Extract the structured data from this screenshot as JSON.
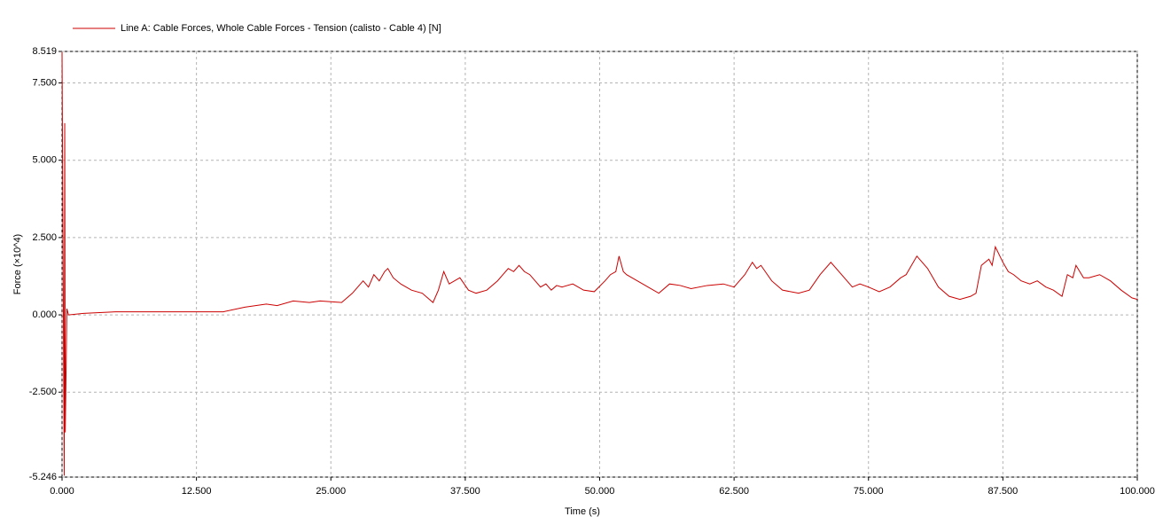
{
  "chart_data": {
    "type": "line",
    "x_label": "Time (s)",
    "y_label": "Force (×10^4)",
    "xlim": [
      0,
      100
    ],
    "ylim": [
      -5.246,
      8.519
    ],
    "xticks": [
      {
        "value": 0,
        "label": "0.000"
      },
      {
        "value": 12.5,
        "label": "12.500"
      },
      {
        "value": 25,
        "label": "25.000"
      },
      {
        "value": 37.5,
        "label": "37.500"
      },
      {
        "value": 50,
        "label": "50.000"
      },
      {
        "value": 62.5,
        "label": "62.500"
      },
      {
        "value": 75,
        "label": "75.000"
      },
      {
        "value": 87.5,
        "label": "87.500"
      },
      {
        "value": 100,
        "label": "100.000"
      }
    ],
    "yticks": [
      {
        "value": -5.246,
        "label": "-5.246"
      },
      {
        "value": -2.5,
        "label": "-2.500"
      },
      {
        "value": 0,
        "label": "0.000"
      },
      {
        "value": 2.5,
        "label": "2.500"
      },
      {
        "value": 5,
        "label": "5.000"
      },
      {
        "value": 7.5,
        "label": "7.500"
      },
      {
        "value": 8.519,
        "label": "8.519"
      }
    ],
    "grid": true,
    "legend": "top-left",
    "x": [
      0,
      0.2,
      0.25,
      0.3,
      0.45,
      0.6,
      2,
      5,
      10,
      15,
      17,
      19,
      20,
      21.5,
      23,
      24,
      26,
      27,
      27.5,
      28,
      28.5,
      29,
      29.5,
      30,
      30.3,
      30.8,
      31.5,
      32,
      32.5,
      33.5,
      34.5,
      35,
      35.5,
      36,
      37,
      37.8,
      38.5,
      39.5,
      40.5,
      41,
      41.5,
      42,
      42.5,
      43,
      43.5,
      44.5,
      45,
      45.5,
      46,
      46.5,
      47.5,
      48.5,
      49.5,
      50.5,
      51,
      51.5,
      51.8,
      52.2,
      52.5,
      53.5,
      54.5,
      55.5,
      56.5,
      57.5,
      58.5,
      60,
      61.5,
      62.5,
      63,
      63.5,
      64.2,
      64.6,
      65,
      66,
      67,
      68.5,
      69.5,
      70.5,
      71.5,
      72.5,
      73.5,
      74.2,
      75,
      76,
      77,
      78,
      78.5,
      79,
      79.5,
      80.5,
      81.5,
      82.5,
      83.5,
      84.5,
      85,
      85.5,
      86.2,
      86.5,
      86.8,
      87.5,
      88,
      88.5,
      89.2,
      90,
      90.7,
      91.5,
      92.2,
      93,
      93.5,
      94,
      94.3,
      95,
      95.5,
      96.5,
      97.5,
      98.5,
      99.5,
      100
    ],
    "series": [
      {
        "name": "Line A: Cable Forces, Whole Cable Forces - Tension (calisto - Cable 4) [N]",
        "color": "#cc0000",
        "values": [
          8.5,
          -5.2,
          6.2,
          -3.8,
          0.2,
          0,
          0.05,
          0.1,
          0.1,
          0.1,
          0.25,
          0.35,
          0.3,
          0.45,
          0.4,
          0.45,
          0.4,
          0.7,
          0.9,
          1.1,
          0.9,
          1.3,
          1.1,
          1.4,
          1.5,
          1.2,
          1.0,
          0.9,
          0.8,
          0.7,
          0.4,
          0.8,
          1.4,
          1.0,
          1.2,
          0.8,
          0.7,
          0.8,
          1.1,
          1.3,
          1.5,
          1.4,
          1.6,
          1.4,
          1.3,
          0.9,
          1.0,
          0.8,
          0.95,
          0.9,
          1.0,
          0.8,
          0.75,
          1.1,
          1.3,
          1.4,
          1.9,
          1.4,
          1.3,
          1.1,
          0.9,
          0.7,
          1.0,
          0.95,
          0.85,
          0.95,
          1.0,
          0.9,
          1.1,
          1.3,
          1.7,
          1.5,
          1.6,
          1.1,
          0.8,
          0.7,
          0.8,
          1.3,
          1.7,
          1.3,
          0.9,
          1.0,
          0.9,
          0.75,
          0.9,
          1.2,
          1.3,
          1.6,
          1.9,
          1.5,
          0.9,
          0.6,
          0.5,
          0.6,
          0.7,
          1.6,
          1.8,
          1.6,
          2.2,
          1.7,
          1.4,
          1.3,
          1.1,
          1.0,
          1.1,
          0.9,
          0.8,
          0.6,
          1.3,
          1.2,
          1.6,
          1.2,
          1.2,
          1.3,
          1.1,
          0.8,
          0.55,
          0.5
        ]
      }
    ]
  }
}
